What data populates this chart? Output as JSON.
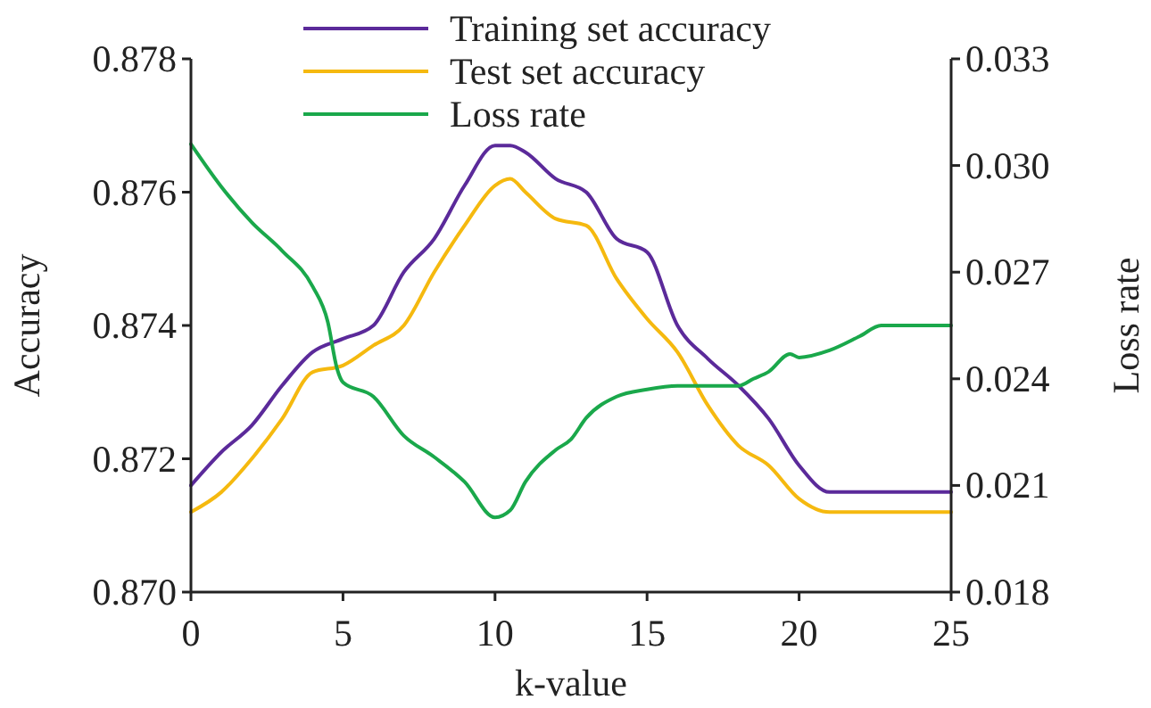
{
  "chart_data": {
    "type": "line",
    "xlabel": "k-value",
    "ylabel": "Accuracy",
    "y2label": "Loss rate",
    "xlim": [
      0,
      25
    ],
    "xticks": [
      0,
      5,
      10,
      15,
      20,
      25
    ],
    "ylim": [
      0.87,
      0.878
    ],
    "yticks": [
      {
        "value": 0.87,
        "label": "0.870"
      },
      {
        "value": 0.872,
        "label": "0.872"
      },
      {
        "value": 0.874,
        "label": "0.874"
      },
      {
        "value": 0.876,
        "label": "0.876"
      },
      {
        "value": 0.878,
        "label": "0.878"
      }
    ],
    "y2lim": [
      0.018,
      0.033
    ],
    "y2ticks": [
      {
        "value": 0.018,
        "label": "0.018"
      },
      {
        "value": 0.021,
        "label": "0.021"
      },
      {
        "value": 0.024,
        "label": "0.024"
      },
      {
        "value": 0.027,
        "label": "0.027"
      },
      {
        "value": 0.03,
        "label": "0.030"
      },
      {
        "value": 0.033,
        "label": "0.033"
      }
    ],
    "legend": "top",
    "grid": false,
    "marker": "none",
    "line_style": "solid",
    "series": [
      {
        "name": "Training set accuracy",
        "color": "#5b2a9a",
        "x": [
          0,
          1,
          2,
          3,
          4,
          5,
          6,
          7,
          8,
          9,
          10,
          10.5,
          11,
          12,
          13,
          14,
          15,
          16,
          17,
          18,
          19,
          20,
          21,
          22,
          23,
          24,
          25
        ],
        "values": [
          0.8716,
          0.8721,
          0.8725,
          0.8731,
          0.8736,
          0.8738,
          0.874,
          0.8748,
          0.8753,
          0.8761,
          0.8767,
          0.8767,
          0.8766,
          0.8762,
          0.876,
          0.8753,
          0.8751,
          0.874,
          0.8735,
          0.8731,
          0.8726,
          0.8719,
          0.8715,
          0.8715,
          0.8715,
          0.8715,
          0.8715
        ]
      },
      {
        "name": "Test set accuracy",
        "color": "#f5b90f",
        "x": [
          0,
          1,
          2,
          3,
          4,
          5,
          6,
          7,
          8,
          9,
          10,
          10.5,
          11,
          12,
          13,
          14,
          15,
          16,
          17,
          18,
          19,
          20,
          21,
          22,
          23,
          24,
          25
        ],
        "values": [
          0.8712,
          0.8715,
          0.872,
          0.8726,
          0.8733,
          0.8734,
          0.8737,
          0.874,
          0.8748,
          0.8755,
          0.8761,
          0.8762,
          0.876,
          0.8756,
          0.8755,
          0.8747,
          0.8741,
          0.8736,
          0.8728,
          0.8722,
          0.8719,
          0.8714,
          0.8712,
          0.8712,
          0.8712,
          0.8712,
          0.8712
        ]
      },
      {
        "name": "Loss rate",
        "color": "#1aa84b",
        "axis": "y2",
        "x": [
          0,
          1,
          2,
          3,
          4,
          4.5,
          4.8,
          5,
          6,
          7,
          8,
          9,
          10,
          10.5,
          11,
          12,
          12.5,
          13,
          14,
          15,
          16,
          17,
          18,
          18.5,
          19,
          19.7,
          20,
          21,
          22,
          22.7,
          23,
          24,
          25
        ],
        "values": [
          0.0306,
          0.0294,
          0.0284,
          0.0276,
          0.0266,
          0.0256,
          0.0243,
          0.0239,
          0.0235,
          0.0224,
          0.0218,
          0.0211,
          0.0201,
          0.0203,
          0.0211,
          0.022,
          0.0223,
          0.0229,
          0.0235,
          0.0237,
          0.0238,
          0.0238,
          0.0238,
          0.024,
          0.0242,
          0.0247,
          0.0246,
          0.0248,
          0.0252,
          0.0255,
          0.0255,
          0.0255,
          0.0255
        ]
      }
    ]
  }
}
